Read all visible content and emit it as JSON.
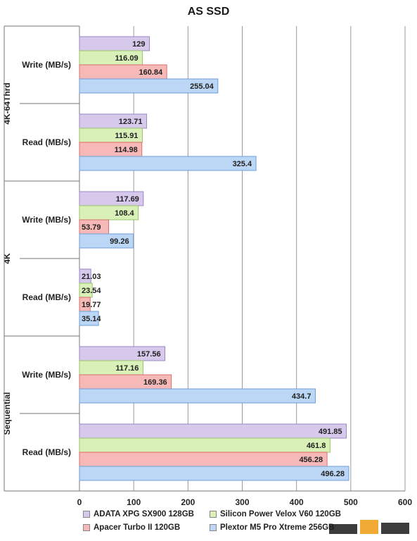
{
  "chart_data": {
    "type": "bar",
    "orientation": "horizontal",
    "title": "AS SSD",
    "xlim": [
      0,
      600
    ],
    "x_ticks": [
      "0",
      "100",
      "200",
      "300",
      "400",
      "500",
      "600"
    ],
    "grid": true,
    "legend_position": "bottom",
    "groups": [
      {
        "label": "4K-64Thrd",
        "categories": [
          "Write (MB/s)",
          "Read (MB/s)"
        ]
      },
      {
        "label": "4K",
        "categories": [
          "Write (MB/s)",
          "Read (MB/s)"
        ]
      },
      {
        "label": "Sequential",
        "categories": [
          "Write (MB/s)",
          "Read (MB/s)"
        ]
      }
    ],
    "categories": [
      "4K-64Thrd Write (MB/s)",
      "4K-64Thrd Read (MB/s)",
      "4K Write (MB/s)",
      "4K Read (MB/s)",
      "Sequential Write (MB/s)",
      "Sequential Read (MB/s)"
    ],
    "series": [
      {
        "name": "ADATA XPG SX900 128GB",
        "color": "#d6c9ec",
        "values": [
          129,
          123.71,
          117.69,
          21.03,
          157.56,
          491.85
        ],
        "labels": [
          "129",
          "123.71",
          "117.69",
          "21.03",
          "157.56",
          "491.85"
        ]
      },
      {
        "name": "Silicon Power Velox V60 120GB",
        "color": "#d9f0b8",
        "values": [
          116.09,
          115.91,
          108.4,
          23.54,
          117.16,
          461.8
        ],
        "labels": [
          "116.09",
          "115.91",
          "108.4",
          "23.54",
          "117.16",
          "461.8"
        ]
      },
      {
        "name": "Apacer Turbo II 120GB",
        "color": "#f6b9b7",
        "values": [
          160.84,
          114.98,
          53.79,
          19.77,
          169.36,
          456.28
        ],
        "labels": [
          "160.84",
          "114.98",
          "53.79",
          "19.77",
          "169.36",
          "456.28"
        ]
      },
      {
        "name": "Plextor M5 Pro Xtreme 256GB",
        "color": "#bcd6f5",
        "values": [
          255.04,
          325.4,
          99.26,
          35.14,
          434.7,
          496.28
        ],
        "labels": [
          "255.04",
          "325.4",
          "99.26",
          "35.14",
          "434.7",
          "496.28"
        ]
      }
    ]
  },
  "legend": {
    "items": [
      "ADATA XPG SX900 128GB",
      "Silicon Power Velox V60 120GB",
      "Apacer Turbo II 120GB",
      "Plextor M5 Pro Xtreme 256GB"
    ]
  }
}
